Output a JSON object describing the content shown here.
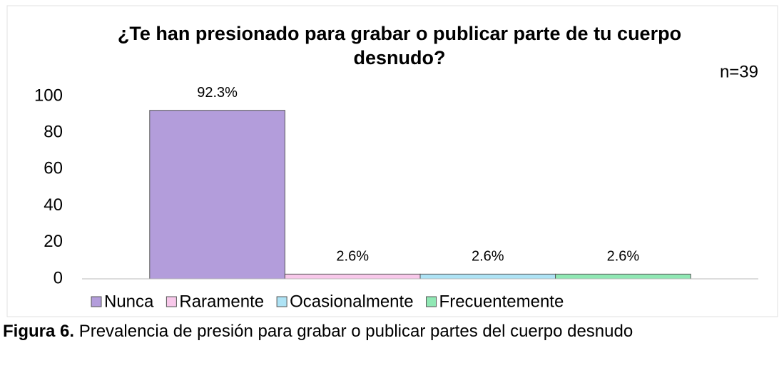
{
  "chart_data": {
    "type": "bar",
    "title": "¿Te han presionado para grabar o publicar parte de tu cuerpo desnudo?",
    "annotation": "n=39",
    "series": [
      {
        "name": "Nunca",
        "color": "#b39ddb",
        "values": [
          92.3
        ],
        "value_labels": [
          "92.3%"
        ]
      },
      {
        "name": "Raramente",
        "color": "#f8c8ea",
        "values": [
          2.6
        ],
        "value_labels": [
          "2.6%"
        ]
      },
      {
        "name": "Ocasionalmente",
        "color": "#aee3f5",
        "values": [
          2.6
        ],
        "value_labels": [
          "2.6%"
        ]
      },
      {
        "name": "Frecuentemente",
        "color": "#90e8b4",
        "values": [
          2.6
        ],
        "value_labels": [
          "2.6%"
        ]
      }
    ],
    "ylim": [
      0,
      100
    ],
    "yticks": [
      0,
      20,
      40,
      60,
      80,
      100
    ],
    "grid": false,
    "legend": "bottom"
  },
  "caption": {
    "label": "Figura 6.",
    "text": "Prevalencia de presión para grabar o publicar partes del cuerpo desnudo"
  }
}
